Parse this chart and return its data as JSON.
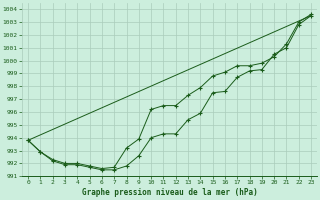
{
  "bg_color": "#cceedd",
  "grid_color": "#aaccbb",
  "line_color": "#1a5c1a",
  "title": "Graphe pression niveau de la mer (hPa)",
  "xlim": [
    -0.5,
    23.5
  ],
  "ylim": [
    991,
    1004.5
  ],
  "yticks": [
    991,
    992,
    993,
    994,
    995,
    996,
    997,
    998,
    999,
    1000,
    1001,
    1002,
    1003,
    1004
  ],
  "xticks": [
    0,
    1,
    2,
    3,
    4,
    5,
    6,
    7,
    8,
    9,
    10,
    11,
    12,
    13,
    14,
    15,
    16,
    17,
    18,
    19,
    20,
    21,
    22,
    23
  ],
  "series1_x": [
    0,
    1,
    2,
    3,
    4,
    5,
    6,
    7,
    8,
    9,
    10,
    11,
    12,
    13,
    14,
    15,
    16,
    17,
    18,
    19,
    20,
    21,
    22,
    23
  ],
  "series1_y": [
    993.8,
    992.9,
    992.2,
    991.9,
    991.9,
    991.7,
    991.5,
    991.5,
    991.8,
    992.6,
    994.0,
    994.3,
    994.3,
    995.4,
    995.9,
    997.5,
    997.6,
    998.7,
    999.2,
    999.3,
    1000.5,
    1001.0,
    1002.8,
    1003.5
  ],
  "series2_x": [
    0,
    1,
    2,
    3,
    4,
    5,
    6,
    7,
    8,
    9,
    10,
    11,
    12,
    13,
    14,
    15,
    16,
    17,
    18,
    19,
    20,
    21,
    22,
    23
  ],
  "series2_y": [
    993.8,
    992.9,
    992.3,
    992.0,
    992.0,
    991.8,
    991.6,
    991.7,
    993.2,
    993.9,
    996.2,
    996.5,
    996.5,
    997.3,
    997.9,
    998.8,
    999.1,
    999.6,
    999.6,
    999.8,
    1000.3,
    1001.3,
    1003.0,
    1003.6
  ],
  "series3_x": [
    0,
    23
  ],
  "series3_y": [
    993.8,
    1003.5
  ]
}
